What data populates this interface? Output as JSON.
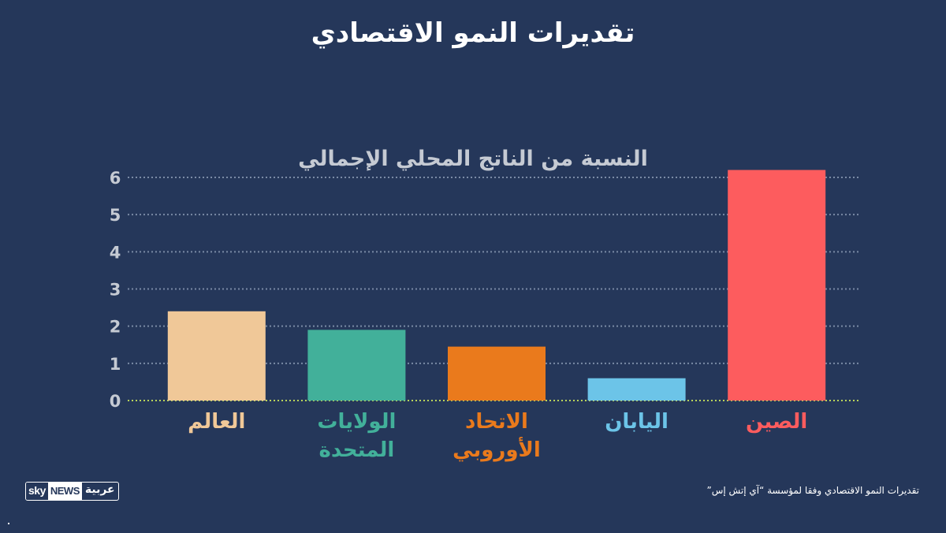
{
  "page": {
    "title": "تقديرات النمو الاقتصادي",
    "subtitle": "النسبة من الناتج المحلي الإجمالي",
    "source": "تقديرات النمو الاقتصادي وفقا لمؤسسة “آي إتش إس”",
    "logo": {
      "sky": "sky",
      "news": "NEWS",
      "arabic": "عربية"
    }
  },
  "chart_data": {
    "type": "bar",
    "title": "تقديرات النمو الاقتصادي",
    "ylabel": "النسبة من الناتج المحلي الإجمالي",
    "ylim": [
      0,
      6
    ],
    "yticks": [
      "0",
      "1",
      "2",
      "3",
      "4",
      "5",
      "6"
    ],
    "grid": true,
    "categories": [
      [
        "العالم"
      ],
      [
        "الولايات",
        "المتحدة"
      ],
      [
        "الاتحاد",
        "الأوروبي"
      ],
      [
        "اليابان"
      ],
      [
        "الصين"
      ]
    ],
    "values": [
      2.4,
      1.9,
      1.45,
      0.6,
      6.2
    ],
    "colors": [
      "#f0c898",
      "#42b09a",
      "#ea7a1c",
      "#6cc4e8",
      "#fd5c5e"
    ],
    "gridColor": "#7a8aa5",
    "baselineColor": "#b9d45a"
  }
}
